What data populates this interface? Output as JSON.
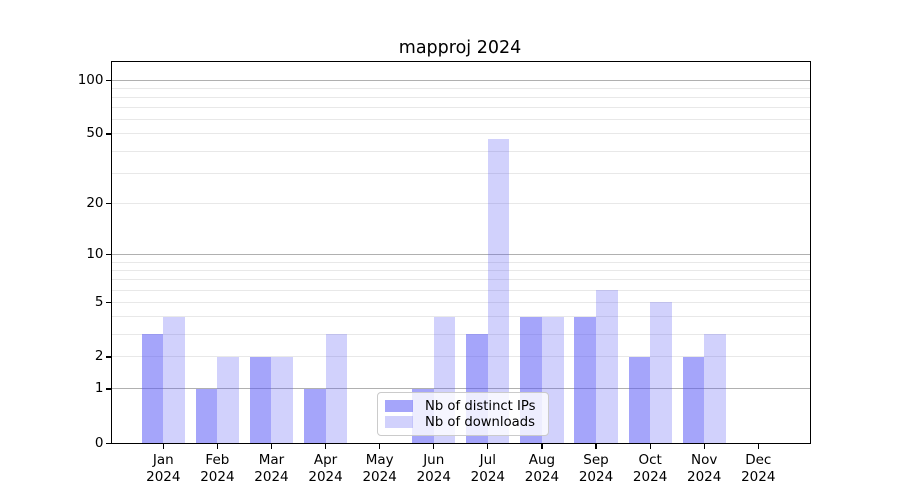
{
  "title": "mapproj 2024",
  "chart_data": {
    "type": "bar",
    "title": "mapproj 2024",
    "yscale": "log1p",
    "grid": true,
    "categories": [
      "Jan",
      "Feb",
      "Mar",
      "Apr",
      "May",
      "Jun",
      "Jul",
      "Aug",
      "Sep",
      "Oct",
      "Nov",
      "Dec"
    ],
    "x_year_line": "2024",
    "series": [
      {
        "name": "Nb of distinct IPs",
        "color": "rgba(85,85,245,0.53)",
        "values": [
          3,
          1,
          2,
          1,
          0,
          1,
          3,
          4,
          4,
          2,
          2,
          0
        ]
      },
      {
        "name": "Nb of downloads",
        "color": "rgba(85,85,245,0.27)",
        "values": [
          4,
          2,
          2,
          3,
          0,
          4,
          47,
          4,
          6,
          5,
          3,
          0
        ]
      }
    ],
    "yticks": [
      100,
      50,
      20,
      10,
      5,
      2,
      1,
      0
    ],
    "major_grid_values": [
      1,
      10,
      100
    ],
    "minor_grid_values": [
      2,
      3,
      4,
      5,
      6,
      7,
      8,
      9,
      20,
      30,
      40,
      50,
      60,
      70,
      80,
      90
    ],
    "ylim": [
      0,
      126
    ],
    "legend_position": "lower center"
  },
  "colors": {
    "bar_dark": "rgba(85,85,245,0.53)",
    "bar_light": "rgba(85,85,245,0.27)",
    "grid_major": "#b0b0b0",
    "grid_minor": "#e8e8e8",
    "spine": "#000000",
    "background": "#ffffff"
  }
}
